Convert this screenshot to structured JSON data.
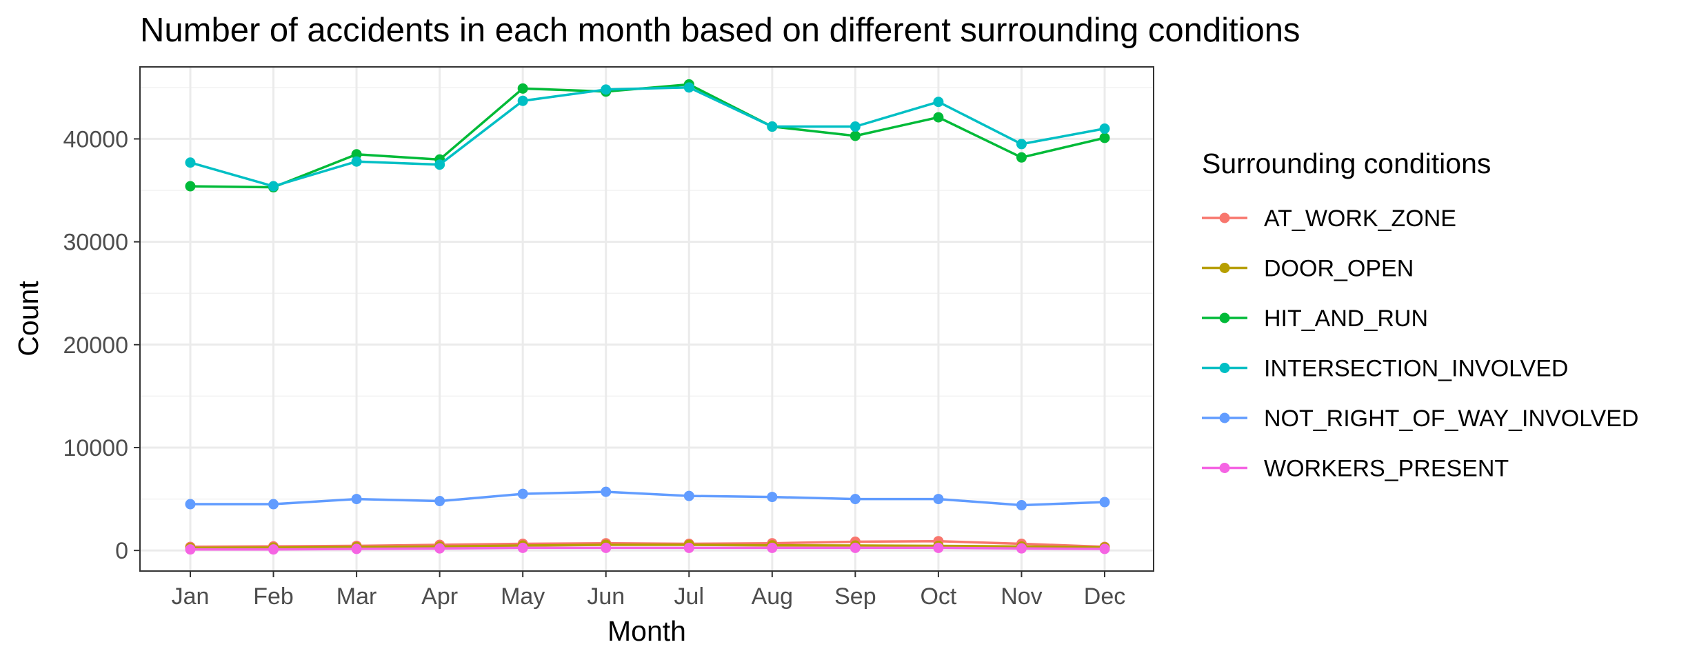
{
  "chart_data": {
    "type": "line",
    "title": "Number of accidents in each month based on different surrounding conditions",
    "xlabel": "Month",
    "ylabel": "Count",
    "categories": [
      "Jan",
      "Feb",
      "Mar",
      "Apr",
      "May",
      "Jun",
      "Jul",
      "Aug",
      "Sep",
      "Oct",
      "Nov",
      "Dec"
    ],
    "ylim": [
      -2000,
      47000
    ],
    "yticks": [
      0,
      10000,
      20000,
      30000,
      40000
    ],
    "grid": true,
    "legend": {
      "title": "Surrounding conditions",
      "position": "right"
    },
    "series": [
      {
        "name": "AT_WORK_ZONE",
        "color": "#F8766D",
        "values": [
          350,
          400,
          450,
          550,
          650,
          700,
          650,
          700,
          850,
          900,
          650,
          350
        ]
      },
      {
        "name": "DOOR_OPEN",
        "color": "#B79F00",
        "values": [
          250,
          280,
          330,
          380,
          480,
          550,
          550,
          500,
          480,
          450,
          380,
          300
        ]
      },
      {
        "name": "HIT_AND_RUN",
        "color": "#00BA38",
        "values": [
          35400,
          35300,
          38500,
          38000,
          44900,
          44600,
          45300,
          41200,
          40300,
          42100,
          38200,
          40100
        ]
      },
      {
        "name": "INTERSECTION_INVOLVED",
        "color": "#00BFC4",
        "values": [
          37700,
          35400,
          37800,
          37500,
          43700,
          44800,
          45000,
          41200,
          41200,
          43600,
          39500,
          41000
        ]
      },
      {
        "name": "NOT_RIGHT_OF_WAY_INVOLVED",
        "color": "#619CFF",
        "values": [
          4500,
          4500,
          5000,
          4800,
          5500,
          5700,
          5300,
          5200,
          5000,
          5000,
          4400,
          4700
        ]
      },
      {
        "name": "WORKERS_PRESENT",
        "color": "#F564E3",
        "values": [
          100,
          100,
          150,
          200,
          250,
          250,
          250,
          250,
          250,
          250,
          200,
          150
        ]
      }
    ]
  }
}
